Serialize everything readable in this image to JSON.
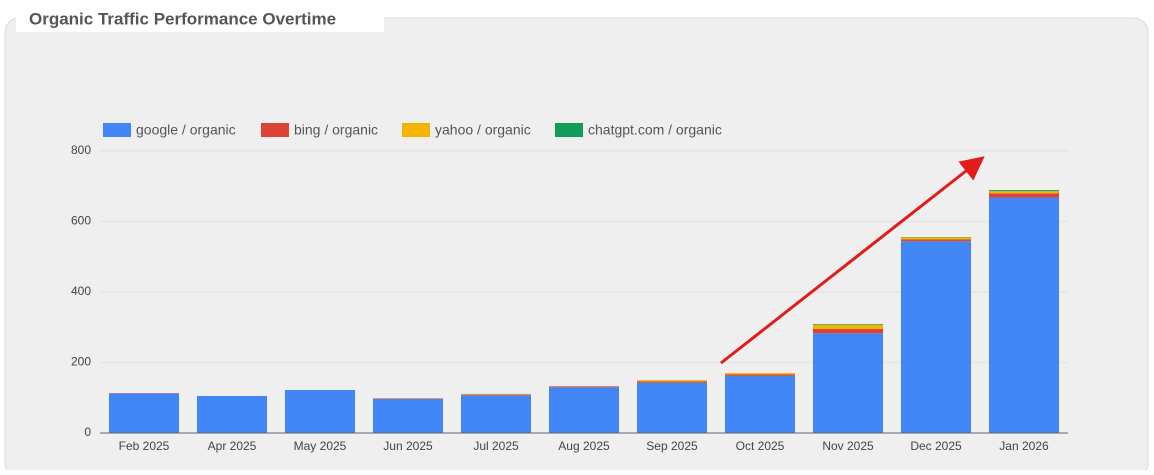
{
  "chart_data": {
    "type": "stacked-bar",
    "title": "Organic Traffic Performance Overtime",
    "categories": [
      "Feb 2025",
      "Apr 2025",
      "May 2025",
      "Jun 2025",
      "Jul 2025",
      "Aug 2025",
      "Sep 2025",
      "Oct 2025",
      "Nov 2025",
      "Dec 2025",
      "Jan 2026"
    ],
    "series": [
      {
        "name": "google / organic",
        "color": "#4285f4",
        "values": [
          112,
          105,
          122,
          97,
          107,
          130,
          143,
          162,
          283,
          544,
          668
        ]
      },
      {
        "name": "bing / organic",
        "color": "#db4437",
        "values": [
          1,
          0,
          0,
          1,
          2,
          2,
          3,
          4,
          12,
          5,
          12
        ]
      },
      {
        "name": "yahoo / organic",
        "color": "#f4b400",
        "values": [
          0,
          0,
          0,
          1,
          2,
          1,
          4,
          4,
          12,
          6,
          6
        ]
      },
      {
        "name": "chatgpt.com / organic",
        "color": "#0f9d58",
        "values": [
          0,
          0,
          0,
          0,
          0,
          0,
          0,
          0,
          2,
          1,
          3
        ]
      }
    ],
    "ylim": [
      0,
      800
    ],
    "yticks": [
      0,
      200,
      400,
      600,
      800
    ],
    "grid": true
  }
}
